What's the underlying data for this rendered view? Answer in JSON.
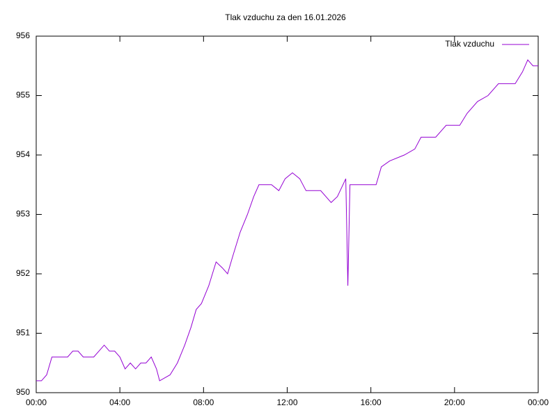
{
  "chart_data": {
    "type": "line",
    "title": "Tlak vzduchu za den 16.01.2026",
    "x": [
      0,
      0.25,
      0.5,
      0.75,
      1,
      1.25,
      1.5,
      1.75,
      2,
      2.25,
      2.5,
      2.75,
      3,
      3.25,
      3.5,
      3.75,
      4,
      4.25,
      4.5,
      4.75,
      5,
      5.25,
      5.5,
      5.75,
      5.9,
      6.4,
      6.75,
      7.1,
      7.4,
      7.65,
      7.9,
      8.25,
      8.6,
      8.9,
      9.15,
      9.4,
      9.75,
      10.1,
      10.4,
      10.65,
      11.25,
      11.6,
      11.9,
      12.25,
      12.6,
      12.9,
      13.6,
      14.1,
      14.4,
      14.8,
      14.9,
      15.0,
      15.6,
      16.25,
      16.5,
      16.9,
      17.6,
      18.1,
      18.4,
      19.1,
      19.6,
      20.25,
      20.6,
      21.1,
      21.6,
      22.1,
      22.9,
      23.25,
      23.5,
      23.75,
      24
    ],
    "series": [
      {
        "name": "Tlak vzduchu",
        "color": "#9400d3",
        "values": [
          950.2,
          950.2,
          950.3,
          950.6,
          950.6,
          950.6,
          950.6,
          950.7,
          950.7,
          950.6,
          950.6,
          950.6,
          950.7,
          950.8,
          950.7,
          950.7,
          950.6,
          950.4,
          950.5,
          950.4,
          950.5,
          950.5,
          950.6,
          950.4,
          950.2,
          950.3,
          950.5,
          950.8,
          951.1,
          951.4,
          951.5,
          951.8,
          952.2,
          952.1,
          952.0,
          952.3,
          952.7,
          953.0,
          953.3,
          953.5,
          953.5,
          953.4,
          953.6,
          953.7,
          953.6,
          953.4,
          953.4,
          953.2,
          953.3,
          953.6,
          951.8,
          953.5,
          953.5,
          953.5,
          953.8,
          953.9,
          954.0,
          954.1,
          954.3,
          954.3,
          954.5,
          954.5,
          954.7,
          954.9,
          955.0,
          955.2,
          955.2,
          955.4,
          955.6,
          955.5,
          955.5
        ]
      }
    ],
    "xlim": [
      0,
      24
    ],
    "xticks": [
      {
        "value": 0,
        "label": "00:00"
      },
      {
        "value": 4,
        "label": "04:00"
      },
      {
        "value": 8,
        "label": "08:00"
      },
      {
        "value": 12,
        "label": "12:00"
      },
      {
        "value": 16,
        "label": "16:00"
      },
      {
        "value": 20,
        "label": "20:00"
      },
      {
        "value": 24,
        "label": "00:00"
      }
    ],
    "ylim": [
      950,
      956
    ],
    "yticks": [
      950,
      951,
      952,
      953,
      954,
      955,
      956
    ],
    "legend": "top-right"
  }
}
